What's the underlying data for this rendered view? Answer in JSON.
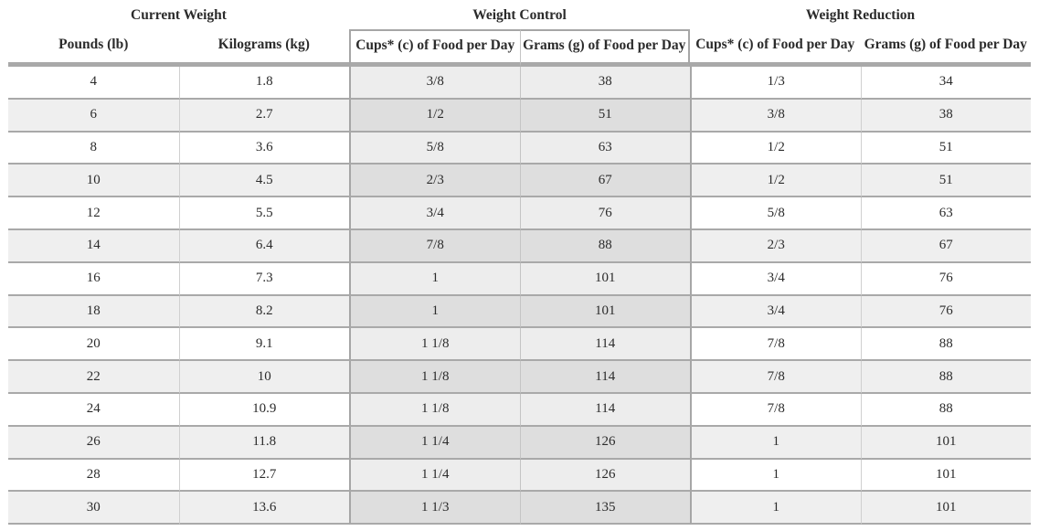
{
  "table": {
    "groups": [
      {
        "label": "Current Weight",
        "columns": [
          "Pounds (lb)",
          "Kilograms (kg)"
        ]
      },
      {
        "label": "Weight Control",
        "columns": [
          "Cups* (c) of Food per Day",
          "Grams (g) of Food per Day"
        ]
      },
      {
        "label": "Weight Reduction",
        "columns": [
          "Cups* (c) of Food per Day",
          "Grams (g) of Food per Day"
        ]
      }
    ],
    "rows": [
      [
        "4",
        "1.8",
        "3/8",
        "38",
        "1/3",
        "34"
      ],
      [
        "6",
        "2.7",
        "1/2",
        "51",
        "3/8",
        "38"
      ],
      [
        "8",
        "3.6",
        "5/8",
        "63",
        "1/2",
        "51"
      ],
      [
        "10",
        "4.5",
        "2/3",
        "67",
        "1/2",
        "51"
      ],
      [
        "12",
        "5.5",
        "3/4",
        "76",
        "5/8",
        "63"
      ],
      [
        "14",
        "6.4",
        "7/8",
        "88",
        "2/3",
        "67"
      ],
      [
        "16",
        "7.3",
        "1",
        "101",
        "3/4",
        "76"
      ],
      [
        "18",
        "8.2",
        "1",
        "101",
        "3/4",
        "76"
      ],
      [
        "20",
        "9.1",
        "1 1/8",
        "114",
        "7/8",
        "88"
      ],
      [
        "22",
        "10",
        "1 1/8",
        "114",
        "7/8",
        "88"
      ],
      [
        "24",
        "10.9",
        "1 1/8",
        "114",
        "7/8",
        "88"
      ],
      [
        "26",
        "11.8",
        "1 1/4",
        "126",
        "1",
        "101"
      ],
      [
        "28",
        "12.7",
        "1 1/4",
        "126",
        "1",
        "101"
      ],
      [
        "30",
        "13.6",
        "1 1/3",
        "135",
        "1",
        "101"
      ]
    ],
    "colors": {
      "stripe": "#efefef",
      "weight_control_tint_light": "#ededed",
      "weight_control_tint_stripe": "#dedede",
      "heavy_border": "#a9a9a9",
      "box_border": "#a6a6a6",
      "light_divider": "#d0d0d0",
      "text": "#2b2b2b"
    }
  }
}
